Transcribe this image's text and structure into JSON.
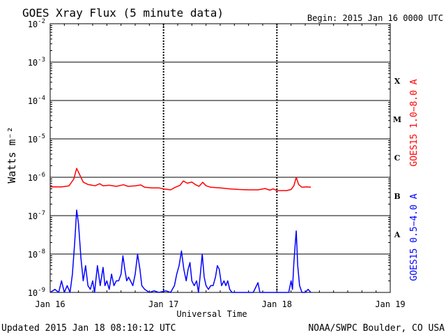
{
  "title": "GOES Xray Flux (5 minute data)",
  "begin_label": "Begin:  2015 Jan 16 0000 UTC",
  "footer_left": "Updated 2015 Jan 18 08:10:12 UTC",
  "footer_right": "NOAA/SWPC Boulder, CO USA",
  "chart_data": {
    "type": "line",
    "title": "GOES Xray Flux (5 minute data)",
    "xlabel": "Universal Time",
    "ylabel": "Watts m⁻²",
    "yscale": "log",
    "ylim": [
      1e-09,
      0.01
    ],
    "xlim_hours": [
      0,
      72
    ],
    "x_ticks": [
      {
        "label": "Jan 16",
        "hour": 0
      },
      {
        "label": "Jan 17",
        "hour": 24
      },
      {
        "label": "Jan 18",
        "hour": 48
      },
      {
        "label": "Jan 19",
        "hour": 72
      }
    ],
    "y_ticks": [
      {
        "mantissa": "10",
        "exp": "-9",
        "value": 1e-09
      },
      {
        "mantissa": "10",
        "exp": "-8",
        "value": 1e-08
      },
      {
        "mantissa": "10",
        "exp": "-7",
        "value": 1e-07
      },
      {
        "mantissa": "10",
        "exp": "-6",
        "value": 1e-06
      },
      {
        "mantissa": "10",
        "exp": "-5",
        "value": 1e-05
      },
      {
        "mantissa": "10",
        "exp": "-4",
        "value": 0.0001
      },
      {
        "mantissa": "10",
        "exp": "-3",
        "value": 0.001
      },
      {
        "mantissa": "10",
        "exp": "-2",
        "value": 0.01
      }
    ],
    "flare_classes": [
      {
        "label": "A",
        "value": 3.2e-08
      },
      {
        "label": "B",
        "value": 3.2e-07
      },
      {
        "label": "C",
        "value": 3.2e-06
      },
      {
        "label": "M",
        "value": 3.2e-05
      },
      {
        "label": "X",
        "value": 0.00032
      }
    ],
    "grid": true,
    "legend": "right",
    "series": [
      {
        "name": "GOES15 1.0−8.0 A",
        "color": "#ff0000",
        "points": [
          [
            0.0,
            5.6e-07
          ],
          [
            2.5,
            5.6e-07
          ],
          [
            4.0,
            6e-07
          ],
          [
            5.0,
            9e-07
          ],
          [
            5.6,
            1.7e-06
          ],
          [
            6.2,
            1.2e-06
          ],
          [
            7.0,
            7.5e-07
          ],
          [
            8.0,
            6.5e-07
          ],
          [
            9.5,
            6e-07
          ],
          [
            10.5,
            6.8e-07
          ],
          [
            11.2,
            6e-07
          ],
          [
            12.5,
            6.2e-07
          ],
          [
            14.0,
            5.8e-07
          ],
          [
            15.5,
            6.4e-07
          ],
          [
            16.5,
            5.8e-07
          ],
          [
            18.0,
            6e-07
          ],
          [
            19.2,
            6.3e-07
          ],
          [
            20.0,
            5.5e-07
          ],
          [
            21.5,
            5.3e-07
          ],
          [
            23.0,
            5.3e-07
          ],
          [
            24.0,
            5e-07
          ],
          [
            25.5,
            4.7e-07
          ],
          [
            26.5,
            5.5e-07
          ],
          [
            27.5,
            6.2e-07
          ],
          [
            28.2,
            8e-07
          ],
          [
            29.0,
            7e-07
          ],
          [
            30.0,
            7.5e-07
          ],
          [
            30.8,
            6.4e-07
          ],
          [
            31.5,
            5.8e-07
          ],
          [
            32.3,
            7.4e-07
          ],
          [
            33.0,
            6e-07
          ],
          [
            34.0,
            5.5e-07
          ],
          [
            36.0,
            5.3e-07
          ],
          [
            38.0,
            5e-07
          ],
          [
            40.0,
            4.8e-07
          ],
          [
            42.0,
            4.7e-07
          ],
          [
            44.0,
            4.7e-07
          ],
          [
            45.5,
            5.1e-07
          ],
          [
            46.5,
            4.6e-07
          ],
          [
            47.2,
            5e-07
          ],
          [
            48.0,
            4.5e-07
          ],
          [
            50.0,
            4.5e-07
          ],
          [
            51.0,
            4.8e-07
          ],
          [
            51.6,
            6e-07
          ],
          [
            52.1,
            1e-06
          ],
          [
            52.6,
            6.5e-07
          ],
          [
            53.3,
            5.5e-07
          ],
          [
            54.3,
            5.6e-07
          ],
          [
            55.2,
            5.5e-07
          ]
        ]
      },
      {
        "name": "GOES15 0.5−4.0 A",
        "color": "#0000ff",
        "points": [
          [
            0.0,
            1e-09
          ],
          [
            1.0,
            1.2e-09
          ],
          [
            1.8,
            1e-09
          ],
          [
            2.4,
            2e-09
          ],
          [
            3.0,
            1e-09
          ],
          [
            3.6,
            1.5e-09
          ],
          [
            4.2,
            1e-09
          ],
          [
            4.7,
            3e-09
          ],
          [
            5.2,
            2e-08
          ],
          [
            5.6,
            1.4e-07
          ],
          [
            6.0,
            6e-08
          ],
          [
            6.5,
            8e-09
          ],
          [
            7.0,
            2e-09
          ],
          [
            7.5,
            5e-09
          ],
          [
            8.0,
            1.5e-09
          ],
          [
            8.5,
            1.2e-09
          ],
          [
            9.0,
            2e-09
          ],
          [
            9.4,
            1e-09
          ],
          [
            10.0,
            5e-09
          ],
          [
            10.6,
            1.5e-09
          ],
          [
            11.2,
            4.5e-09
          ],
          [
            11.6,
            1.5e-09
          ],
          [
            12.0,
            2e-09
          ],
          [
            12.5,
            1.2e-09
          ],
          [
            13.0,
            3e-09
          ],
          [
            13.5,
            1.5e-09
          ],
          [
            14.0,
            2e-09
          ],
          [
            14.5,
            2e-09
          ],
          [
            15.0,
            3e-09
          ],
          [
            15.4,
            9e-09
          ],
          [
            15.8,
            4e-09
          ],
          [
            16.2,
            2e-09
          ],
          [
            16.6,
            2.5e-09
          ],
          [
            17.0,
            2e-09
          ],
          [
            17.5,
            1.5e-09
          ],
          [
            18.0,
            3e-09
          ],
          [
            18.5,
            1e-08
          ],
          [
            19.0,
            4e-09
          ],
          [
            19.4,
            1.5e-09
          ],
          [
            20.0,
            1.2e-09
          ],
          [
            21.0,
            1e-09
          ],
          [
            22.0,
            1.1e-09
          ],
          [
            23.0,
            1e-09
          ],
          [
            24.5,
            1.1e-09
          ],
          [
            25.5,
            1e-09
          ],
          [
            26.3,
            1.5e-09
          ],
          [
            26.8,
            3e-09
          ],
          [
            27.3,
            5e-09
          ],
          [
            27.8,
            1.2e-08
          ],
          [
            28.3,
            4e-09
          ],
          [
            28.8,
            2e-09
          ],
          [
            29.2,
            4e-09
          ],
          [
            29.6,
            6e-09
          ],
          [
            30.0,
            2e-09
          ],
          [
            30.5,
            1.5e-09
          ],
          [
            31.0,
            2e-09
          ],
          [
            31.4,
            1e-09
          ],
          [
            31.8,
            3e-09
          ],
          [
            32.2,
            1e-08
          ],
          [
            32.6,
            2.5e-09
          ],
          [
            33.0,
            1.5e-09
          ],
          [
            33.5,
            1.2e-09
          ],
          [
            34.0,
            1.5e-09
          ],
          [
            34.5,
            1.5e-09
          ],
          [
            35.0,
            2.5e-09
          ],
          [
            35.4,
            5e-09
          ],
          [
            35.8,
            4e-09
          ],
          [
            36.3,
            1.5e-09
          ],
          [
            36.8,
            2e-09
          ],
          [
            37.2,
            1.5e-09
          ],
          [
            37.6,
            2e-09
          ],
          [
            38.0,
            1.2e-09
          ],
          [
            38.5,
            1e-09
          ],
          [
            40.0,
            1e-09
          ],
          [
            42.0,
            1e-09
          ],
          [
            43.0,
            1e-09
          ],
          [
            44.0,
            1.8e-09
          ],
          [
            44.4,
            1e-09
          ],
          [
            45.5,
            1e-09
          ],
          [
            47.0,
            1e-09
          ],
          [
            48.0,
            1e-09
          ],
          [
            49.0,
            1e-09
          ],
          [
            50.5,
            1e-09
          ],
          [
            51.0,
            2e-09
          ],
          [
            51.3,
            1.2e-09
          ],
          [
            51.6,
            6e-09
          ],
          [
            51.9,
            2e-08
          ],
          [
            52.1,
            4e-08
          ],
          [
            52.4,
            5e-09
          ],
          [
            52.8,
            1.5e-09
          ],
          [
            53.3,
            1e-09
          ],
          [
            54.0,
            1e-09
          ],
          [
            54.6,
            1.2e-09
          ],
          [
            55.2,
            1e-09
          ]
        ]
      }
    ]
  }
}
